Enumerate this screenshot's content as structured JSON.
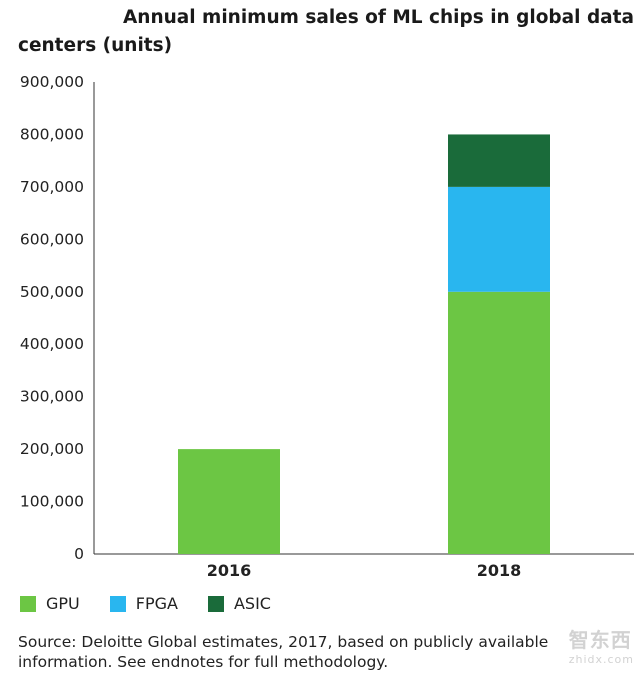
{
  "chart_data": {
    "type": "bar",
    "stacked": true,
    "title_line1": "Annual minimum sales of ML chips in global data",
    "title_line2": "centers (units)",
    "categories": [
      "2016",
      "2018"
    ],
    "series": [
      {
        "name": "GPU",
        "values": [
          200000,
          500000
        ],
        "color": "#6cc644"
      },
      {
        "name": "FPGA",
        "values": [
          0,
          200000
        ],
        "color": "#29b6ef"
      },
      {
        "name": "ASIC",
        "values": [
          0,
          100000
        ],
        "color": "#1a6b3a"
      }
    ],
    "ylim": [
      0,
      900000
    ],
    "yticks": [
      "0",
      "100,000",
      "200,000",
      "300,000",
      "400,000",
      "500,000",
      "600,000",
      "700,000",
      "800,000",
      "900,000"
    ],
    "grid": false,
    "legend": "bottom-left"
  },
  "source": {
    "line1": "Source: Deloitte Global estimates, 2017, based on publicly available",
    "line2": "information. See endnotes for full methodology."
  },
  "watermark": {
    "main": "智东西",
    "sub": "zhidx.com"
  }
}
